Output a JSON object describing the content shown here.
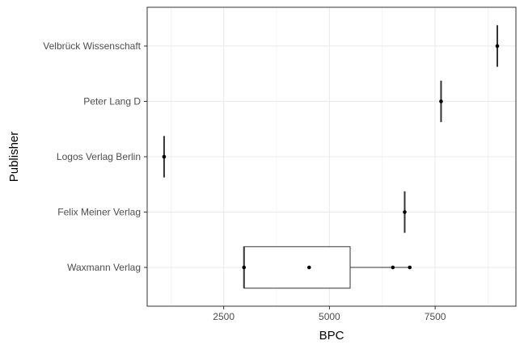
{
  "chart_data": {
    "type": "boxplot",
    "xlabel": "BPC",
    "ylabel": "Publisher",
    "xlim": [
      690,
      9410
    ],
    "x_ticks": [
      2500,
      5000,
      7500
    ],
    "x_tick_labels": [
      "2500",
      "5000",
      "7500"
    ],
    "grid": true,
    "categories": [
      "Waxmann Verlag",
      "Felix Meiner Verlag",
      "Logos Verlag Berlin",
      "Peter Lang D",
      "Velbrück Wissenschaft"
    ],
    "boxes": [
      {
        "category": "Waxmann Verlag",
        "q1": 2980,
        "median": 2980,
        "q3": 5490,
        "whisker_low": 2980,
        "whisker_high": 6900,
        "points": [
          2980,
          4520,
          6500,
          6900
        ]
      },
      {
        "category": "Felix Meiner Verlag",
        "q1": 6780,
        "median": 6780,
        "q3": 6780,
        "whisker_low": 6780,
        "whisker_high": 6780,
        "points": [
          6780
        ]
      },
      {
        "category": "Logos Verlag Berlin",
        "q1": 1090,
        "median": 1090,
        "q3": 1090,
        "whisker_low": 1090,
        "whisker_high": 1090,
        "points": [
          1090
        ]
      },
      {
        "category": "Peter Lang D",
        "q1": 7640,
        "median": 7640,
        "q3": 7640,
        "whisker_low": 7640,
        "whisker_high": 7640,
        "points": [
          7640
        ]
      },
      {
        "category": "Velbrück Wissenschaft",
        "q1": 8970,
        "median": 8970,
        "q3": 8970,
        "whisker_low": 8970,
        "whisker_high": 8970,
        "points": [
          8970
        ]
      }
    ]
  }
}
